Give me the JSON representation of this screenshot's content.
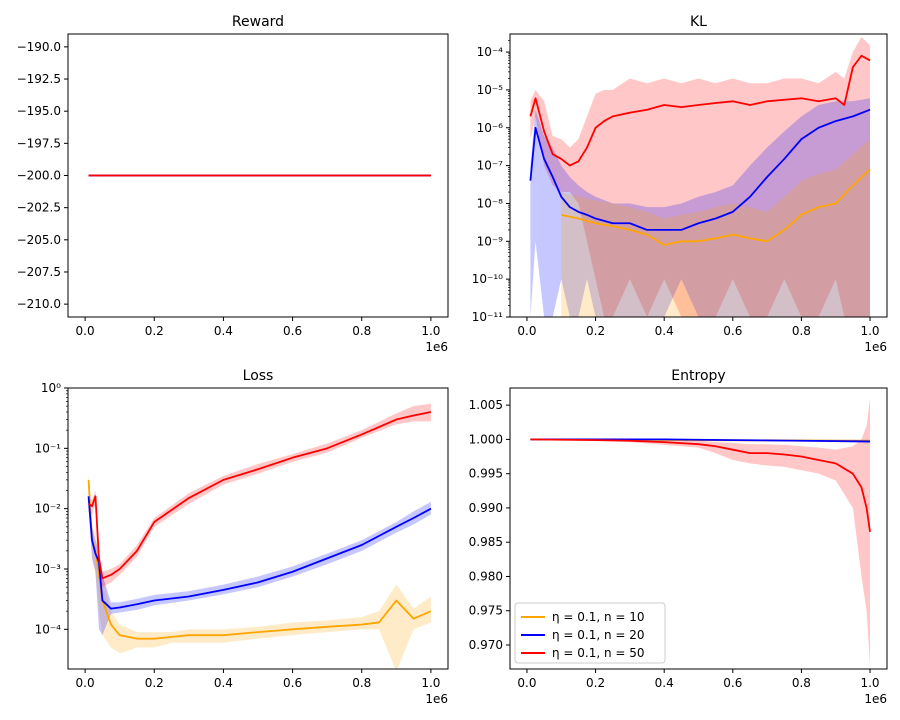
{
  "legend": {
    "entries": [
      {
        "label": "η = 0.1, n = 10",
        "color": "#ffa500"
      },
      {
        "label": "η = 0.1, n = 20",
        "color": "#0000ff"
      },
      {
        "label": "η = 0.1, n = 50",
        "color": "#ff0000"
      }
    ],
    "placement": "lower-left of Entropy panel"
  },
  "chart_data": [
    {
      "type": "line",
      "title": "Reward",
      "xlim": [
        0,
        1000000
      ],
      "ylim": [
        -211,
        -189
      ],
      "x_multiplier_label": "1e6",
      "x_ticks": [
        0,
        200000,
        400000,
        600000,
        800000,
        1000000
      ],
      "x_tick_labels": [
        "0.0",
        "0.2",
        "0.4",
        "0.6",
        "0.8",
        "1.0"
      ],
      "y_ticks": [
        -190,
        -192.5,
        -195,
        -197.5,
        -200,
        -202.5,
        -205,
        -207.5,
        -210
      ],
      "y_tick_labels": [
        "−190.0",
        "−192.5",
        "−195.0",
        "−197.5",
        "−200.0",
        "−202.5",
        "−205.0",
        "−207.5",
        "−210.0"
      ],
      "series": [
        {
          "color": "#ffa500",
          "x": [
            10000,
            1000000
          ],
          "y": [
            -200,
            -200
          ]
        },
        {
          "color": "#0000ff",
          "x": [
            10000,
            1000000
          ],
          "y": [
            -200,
            -200
          ]
        },
        {
          "color": "#ff0000",
          "x": [
            10000,
            1000000
          ],
          "y": [
            -200,
            -200
          ]
        }
      ]
    },
    {
      "type": "line",
      "title": "KL",
      "yscale": "log",
      "xlim": [
        0,
        1000000
      ],
      "ylim": [
        1e-11,
        0.0003
      ],
      "x_multiplier_label": "1e6",
      "x_ticks": [
        0,
        200000,
        400000,
        600000,
        800000,
        1000000
      ],
      "x_tick_labels": [
        "0.0",
        "0.2",
        "0.4",
        "0.6",
        "0.8",
        "1.0"
      ],
      "y_ticks": [
        -11,
        -10,
        -9,
        -8,
        -7,
        -6,
        -5,
        -4
      ],
      "series": [
        {
          "color": "#ff0000",
          "band_alpha": 0.22,
          "x": [
            10000,
            25000,
            50000,
            75000,
            100000,
            125000,
            150000,
            175000,
            200000,
            225000,
            250000,
            300000,
            350000,
            400000,
            450000,
            500000,
            550000,
            600000,
            650000,
            700000,
            750000,
            800000,
            850000,
            900000,
            925000,
            950000,
            975000,
            1000000
          ],
          "y": [
            2e-06,
            6e-06,
            8e-07,
            2e-07,
            1.5e-07,
            1e-07,
            1.3e-07,
            3e-07,
            1e-06,
            1.5e-06,
            2e-06,
            2.5e-06,
            3e-06,
            4e-06,
            3.5e-06,
            4e-06,
            4.5e-06,
            5e-06,
            4e-06,
            5e-06,
            5.5e-06,
            6e-06,
            5e-06,
            6e-06,
            4e-06,
            4e-05,
            8e-05,
            6e-05
          ],
          "lo": [
            5e-07,
            2e-06,
            1e-07,
            3e-08,
            2e-08,
            2e-08,
            1e-08,
            1e-09,
            1e-10,
            1e-11,
            1e-11,
            1e-10,
            1e-11,
            1e-10,
            1e-11,
            1e-11,
            1e-11,
            1e-10,
            1e-11,
            1e-11,
            1e-10,
            1e-11,
            1e-11,
            1e-10,
            1e-11,
            1e-11,
            1e-11,
            1e-11
          ],
          "hi": [
            5e-06,
            1e-05,
            5e-06,
            6e-07,
            5e-07,
            3e-07,
            5e-07,
            2e-06,
            8e-06,
            1e-05,
            1e-05,
            2e-05,
            1.5e-05,
            2e-05,
            1.5e-05,
            2e-05,
            1.5e-05,
            2e-05,
            1.5e-05,
            1.5e-05,
            2e-05,
            2e-05,
            1.5e-05,
            3e-05,
            2e-05,
            0.0001,
            0.00025,
            0.00015
          ]
        },
        {
          "color": "#0000ff",
          "band_alpha": 0.22,
          "x": [
            10000,
            25000,
            50000,
            75000,
            100000,
            125000,
            150000,
            175000,
            200000,
            250000,
            300000,
            350000,
            400000,
            450000,
            500000,
            550000,
            600000,
            650000,
            700000,
            750000,
            800000,
            850000,
            900000,
            950000,
            1000000
          ],
          "y": [
            4e-08,
            1e-06,
            1.5e-07,
            5e-08,
            1.5e-08,
            8e-09,
            6e-09,
            5e-09,
            4e-09,
            3e-09,
            3e-09,
            2e-09,
            2e-09,
            2e-09,
            3e-09,
            4e-09,
            6e-09,
            1.5e-08,
            5e-08,
            1.5e-07,
            5e-07,
            1e-06,
            1.5e-06,
            2e-06,
            3e-06
          ],
          "lo": [
            1e-11,
            1e-09,
            1e-11,
            1e-11,
            1e-10,
            1e-11,
            1e-11,
            1e-10,
            1e-11,
            1e-11,
            1e-11,
            1e-11,
            1e-11,
            1e-10,
            1e-11,
            1e-11,
            1e-11,
            1e-11,
            1e-11,
            1e-11,
            1e-11,
            1e-11,
            1e-11,
            1e-11,
            1e-11
          ],
          "hi": [
            1e-07,
            3e-06,
            6e-07,
            3e-07,
            1e-07,
            5e-08,
            3e-08,
            2e-08,
            1.5e-08,
            1e-08,
            1e-08,
            8e-09,
            8e-09,
            1e-08,
            1.5e-08,
            2e-08,
            3e-08,
            1e-07,
            3e-07,
            8e-07,
            2e-06,
            4e-06,
            5e-06,
            5e-06,
            6e-06
          ]
        },
        {
          "color": "#ffa500",
          "band_alpha": 0.22,
          "x": [
            100000,
            150000,
            200000,
            250000,
            300000,
            350000,
            400000,
            450000,
            500000,
            550000,
            600000,
            650000,
            700000,
            750000,
            800000,
            850000,
            900000,
            950000,
            1000000
          ],
          "y": [
            5e-09,
            4e-09,
            3e-09,
            2.5e-09,
            2e-09,
            1.5e-09,
            8e-10,
            1e-09,
            1e-09,
            1.2e-09,
            1.5e-09,
            1.2e-09,
            1e-09,
            2e-09,
            5e-09,
            8e-09,
            1e-08,
            3e-08,
            8e-08
          ],
          "lo": [
            1e-11,
            1e-11,
            1e-11,
            1e-11,
            1e-11,
            1e-11,
            1e-11,
            1e-11,
            1e-11,
            1e-11,
            1e-11,
            1e-11,
            1e-11,
            1e-11,
            1e-11,
            1e-11,
            1e-11,
            1e-11,
            1e-11
          ],
          "hi": [
            2e-08,
            1.5e-08,
            1.2e-08,
            1e-08,
            8e-09,
            6e-09,
            4e-09,
            5e-09,
            6e-09,
            8e-09,
            1e-08,
            8e-09,
            6e-09,
            1.5e-08,
            4e-08,
            6e-08,
            8e-08,
            2e-07,
            5e-07
          ]
        }
      ]
    },
    {
      "type": "line",
      "title": "Loss",
      "yscale": "log",
      "xlim": [
        0,
        1000000
      ],
      "ylim": [
        2.2e-05,
        1
      ],
      "x_multiplier_label": "1e6",
      "x_ticks": [
        0,
        200000,
        400000,
        600000,
        800000,
        1000000
      ],
      "x_tick_labels": [
        "0.0",
        "0.2",
        "0.4",
        "0.6",
        "0.8",
        "1.0"
      ],
      "y_ticks": [
        -4,
        -3,
        -2,
        -1,
        0
      ],
      "series": [
        {
          "color": "#ffa500",
          "band_alpha": 0.22,
          "x": [
            10000,
            20000,
            30000,
            40000,
            50000,
            75000,
            100000,
            150000,
            200000,
            250000,
            300000,
            400000,
            500000,
            600000,
            700000,
            800000,
            850000,
            900000,
            950000,
            1000000
          ],
          "y": [
            0.03,
            0.003,
            0.002,
            0.0008,
            0.0003,
            0.00012,
            8e-05,
            7e-05,
            7e-05,
            7.5e-05,
            8e-05,
            8e-05,
            9e-05,
            0.0001,
            0.00011,
            0.00012,
            0.00013,
            0.0003,
            0.00015,
            0.0002
          ],
          "lo": [
            0.02,
            0.0015,
            0.0008,
            0.0002,
            8e-05,
            5e-05,
            4e-05,
            5e-05,
            5e-05,
            6e-05,
            6e-05,
            6e-05,
            7e-05,
            8e-05,
            9e-05,
            0.0001,
            0.0001,
            2e-05,
            0.0001,
            0.00013
          ],
          "hi": [
            0.04,
            0.005,
            0.004,
            0.002,
            0.0008,
            0.0002,
            0.00012,
            9e-05,
            9e-05,
            9e-05,
            0.0001,
            0.0001,
            0.00011,
            0.00013,
            0.00014,
            0.00016,
            0.0002,
            0.00055,
            0.00022,
            0.00035
          ]
        },
        {
          "color": "#0000ff",
          "band_alpha": 0.22,
          "x": [
            10000,
            20000,
            30000,
            40000,
            50000,
            75000,
            100000,
            150000,
            200000,
            300000,
            400000,
            500000,
            600000,
            700000,
            800000,
            900000,
            950000,
            1000000
          ],
          "y": [
            0.016,
            0.003,
            0.0018,
            0.0013,
            0.0003,
            0.00022,
            0.00023,
            0.00026,
            0.0003,
            0.00035,
            0.00045,
            0.0006,
            0.0009,
            0.0015,
            0.0025,
            0.005,
            0.007,
            0.01
          ],
          "lo": [
            0.01,
            0.0015,
            0.0009,
            0.0001,
            8e-05,
            0.00018,
            0.00019,
            0.00021,
            0.00025,
            0.0003,
            0.00038,
            0.0005,
            0.00075,
            0.0012,
            0.002,
            0.004,
            0.0055,
            0.008
          ],
          "hi": [
            0.02,
            0.005,
            0.003,
            0.002,
            0.0008,
            0.00028,
            0.00028,
            0.00032,
            0.00037,
            0.00043,
            0.00055,
            0.00075,
            0.0011,
            0.0018,
            0.003,
            0.006,
            0.009,
            0.013
          ]
        },
        {
          "color": "#ff0000",
          "band_alpha": 0.22,
          "x": [
            10000,
            20000,
            30000,
            40000,
            50000,
            75000,
            100000,
            150000,
            200000,
            300000,
            400000,
            500000,
            600000,
            700000,
            800000,
            900000,
            950000,
            1000000
          ],
          "y": [
            0.012,
            0.011,
            0.016,
            0.0015,
            0.0007,
            0.0008,
            0.001,
            0.002,
            0.006,
            0.015,
            0.03,
            0.045,
            0.07,
            0.1,
            0.17,
            0.3,
            0.35,
            0.4
          ],
          "lo": [
            0.009,
            0.008,
            0.012,
            0.0009,
            0.0005,
            0.0006,
            0.0008,
            0.0016,
            0.005,
            0.012,
            0.025,
            0.038,
            0.06,
            0.085,
            0.15,
            0.25,
            0.28,
            0.28
          ],
          "hi": [
            0.015,
            0.014,
            0.02,
            0.002,
            0.0009,
            0.001,
            0.0012,
            0.0025,
            0.007,
            0.018,
            0.035,
            0.055,
            0.08,
            0.12,
            0.2,
            0.38,
            0.5,
            0.55
          ]
        }
      ]
    },
    {
      "type": "line",
      "title": "Entropy",
      "xlim": [
        0,
        1000000
      ],
      "ylim": [
        0.9665,
        1.0075
      ],
      "x_multiplier_label": "1e6",
      "x_ticks": [
        0,
        200000,
        400000,
        600000,
        800000,
        1000000
      ],
      "x_tick_labels": [
        "0.0",
        "0.2",
        "0.4",
        "0.6",
        "0.8",
        "1.0"
      ],
      "y_ticks": [
        1.005,
        1.0,
        0.995,
        0.99,
        0.985,
        0.98,
        0.975,
        0.97
      ],
      "y_tick_labels": [
        "1.005",
        "1.000",
        "0.995",
        "0.990",
        "0.985",
        "0.980",
        "0.975",
        "0.970"
      ],
      "series": [
        {
          "color": "#ffa500",
          "band_alpha": 0.22,
          "x": [
            10000,
            1000000
          ],
          "y": [
            1.0,
            0.9998
          ],
          "lo": [
            1.0,
            0.9997
          ],
          "hi": [
            1.0,
            0.9999
          ]
        },
        {
          "color": "#0000ff",
          "band_alpha": 0.22,
          "x": [
            10000,
            200000,
            400000,
            600000,
            800000,
            1000000
          ],
          "y": [
            1.0,
            1.0,
            1.0,
            0.9999,
            0.9998,
            0.9997
          ],
          "lo": [
            1.0,
            0.99995,
            0.99993,
            0.9998,
            0.9997,
            0.9995
          ],
          "hi": [
            1.0,
            1.0,
            1.0,
            1.0,
            0.99995,
            0.99995
          ]
        },
        {
          "color": "#ff0000",
          "band_alpha": 0.22,
          "x": [
            10000,
            200000,
            300000,
            400000,
            500000,
            550000,
            600000,
            650000,
            700000,
            750000,
            800000,
            850000,
            900000,
            950000,
            975000,
            990000,
            1000000
          ],
          "y": [
            1.0,
            0.9999,
            0.9998,
            0.9996,
            0.9993,
            0.999,
            0.9985,
            0.998,
            0.998,
            0.9978,
            0.9975,
            0.997,
            0.9965,
            0.995,
            0.993,
            0.99,
            0.9865
          ],
          "lo": [
            1.0,
            0.9998,
            0.9996,
            0.9992,
            0.9988,
            0.998,
            0.997,
            0.9965,
            0.9962,
            0.996,
            0.9955,
            0.995,
            0.994,
            0.99,
            0.98,
            0.975,
            0.967
          ],
          "hi": [
            1.0,
            1.0,
            0.99995,
            0.9999,
            0.9998,
            0.9996,
            0.9995,
            0.9993,
            0.9993,
            0.9992,
            0.999,
            0.9988,
            0.9985,
            0.999,
            1.0,
            1.002,
            1.006
          ]
        }
      ]
    }
  ]
}
